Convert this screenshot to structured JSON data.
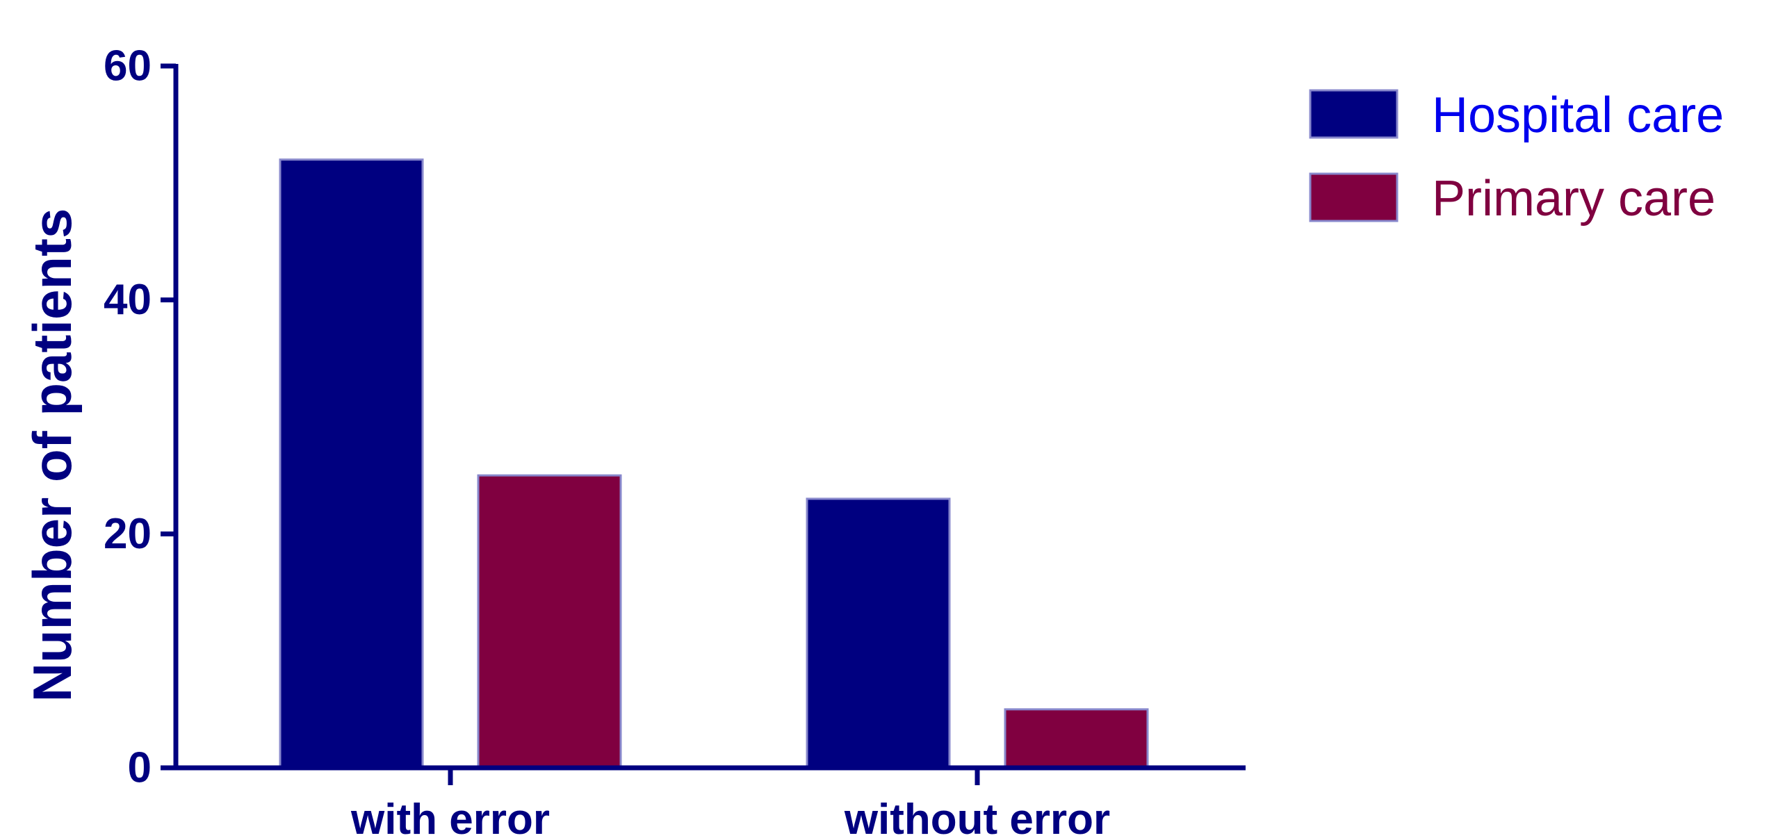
{
  "chart_data": {
    "type": "bar",
    "categories": [
      "with error",
      "without error"
    ],
    "series": [
      {
        "name": "Hospital care",
        "values": [
          52,
          23
        ],
        "color": "#000080"
      },
      {
        "name": "Primary care",
        "values": [
          25,
          5
        ],
        "color": "#800040"
      }
    ],
    "title": "",
    "xlabel": "",
    "ylabel": "Number of patients",
    "ylim": [
      0,
      60
    ],
    "yticks": [
      0,
      20,
      40,
      60
    ],
    "grid": false,
    "legend": "right",
    "axis_color": "#000080"
  }
}
